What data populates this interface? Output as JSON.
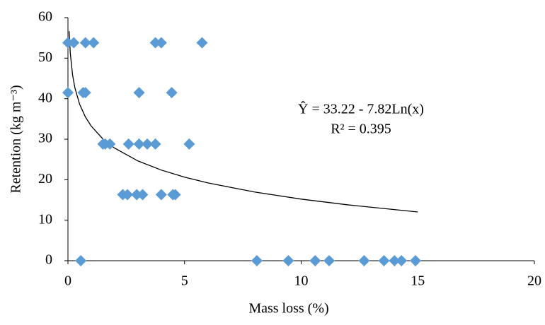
{
  "chart_data": {
    "type": "scatter",
    "x_label": "Mass loss (%)",
    "y_label": "Retention (kg m⁻³)",
    "xlim": [
      0,
      20
    ],
    "xticks": [
      0,
      5,
      10,
      15,
      20
    ],
    "ylim": [
      0,
      60
    ],
    "yticks": [
      0,
      10,
      20,
      30,
      40,
      50,
      60
    ],
    "grid": false,
    "series": [
      {
        "color": "#5b9bd5",
        "x": [
          0,
          0.25,
          0.75,
          1.1,
          3.75,
          4.0,
          5.75,
          0,
          0.65,
          0.75,
          3.05,
          4.45,
          1.5,
          1.6,
          1.8,
          2.6,
          3.05,
          3.4,
          3.75,
          5.2,
          2.35,
          2.55,
          2.95,
          3.2,
          4.0,
          4.5,
          4.6,
          0.55,
          8.1,
          9.45,
          10.6,
          11.2,
          12.7,
          13.55,
          14.0,
          14.3,
          14.9
        ],
        "values": [
          53.8,
          53.8,
          53.8,
          53.8,
          53.8,
          53.8,
          53.8,
          41.5,
          41.5,
          41.5,
          41.5,
          41.5,
          28.8,
          28.8,
          28.8,
          28.8,
          28.8,
          28.8,
          28.8,
          28.8,
          16.3,
          16.3,
          16.3,
          16.3,
          16.3,
          16.3,
          16.3,
          0,
          0,
          0,
          0,
          0,
          0,
          0,
          0,
          0,
          0
        ]
      }
    ],
    "trendline": {
      "equation": "Ŷ = 33.22 - 7.82Ln(x)",
      "r2": "R² = 0.395",
      "color": "#000000",
      "x": [
        0.05,
        0.1,
        0.2,
        0.3,
        0.5,
        0.75,
        1,
        1.5,
        2,
        3,
        4,
        5,
        6,
        8,
        10,
        12,
        15
      ],
      "values": [
        56.65,
        51.23,
        45.81,
        42.64,
        38.64,
        35.47,
        33.22,
        30.05,
        27.8,
        24.63,
        22.38,
        20.63,
        19.21,
        16.96,
        15.21,
        13.79,
        12.04
      ]
    }
  }
}
